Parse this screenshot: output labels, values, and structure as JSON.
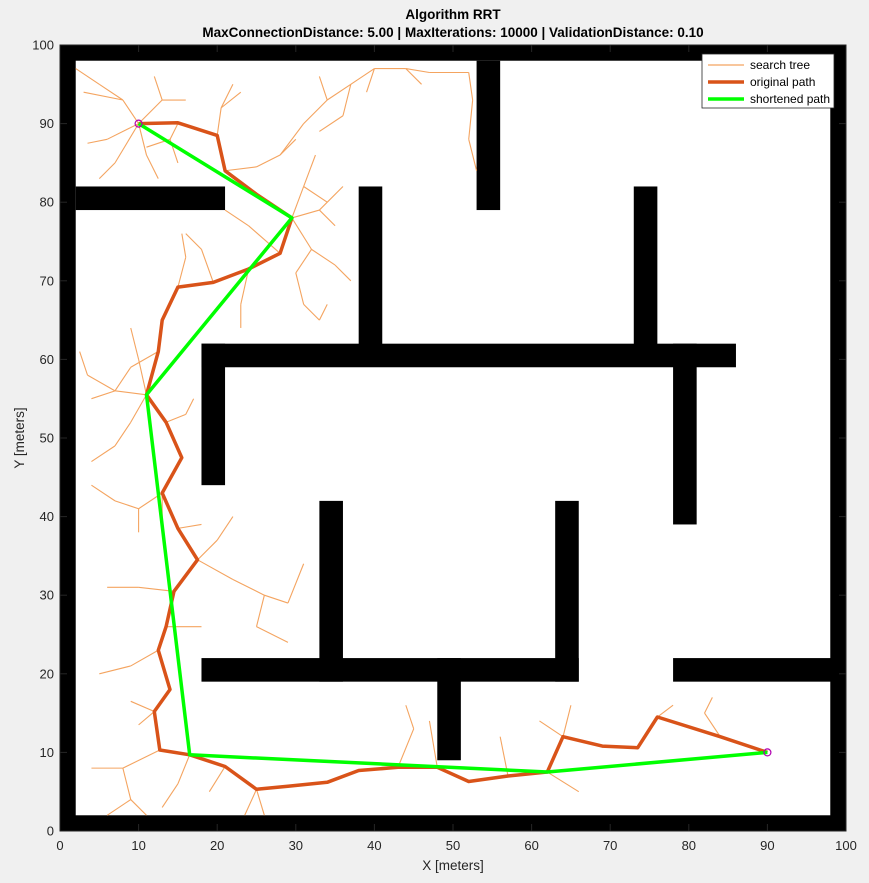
{
  "chart_data": {
    "type": "line",
    "title": "Algorithm RRT",
    "subtitle": "MaxConnectionDistance: 5.00 | MaxIterations: 10000 | ValidationDistance: 0.10",
    "xlabel": "X [meters]",
    "ylabel": "Y [meters]",
    "xlim": [
      0,
      100
    ],
    "ylim": [
      0,
      100
    ],
    "xticks": [
      "0",
      "10",
      "20",
      "30",
      "40",
      "50",
      "60",
      "70",
      "80",
      "90",
      "100"
    ],
    "yticks": [
      "0",
      "10",
      "20",
      "30",
      "40",
      "50",
      "60",
      "70",
      "80",
      "90",
      "100"
    ],
    "grid": false,
    "legend_position": "top-right",
    "legend": [
      {
        "label": "search tree",
        "color": "#f4a460"
      },
      {
        "label": "original path",
        "color": "#d95319"
      },
      {
        "label": "shortened path",
        "color": "#00ff00"
      }
    ],
    "colors": {
      "obstacle": "#000000",
      "tree": "#f4a460",
      "original": "#d95319",
      "shortened": "#00ff00",
      "endpoint": "#b000b0"
    },
    "obstacles": [
      [
        0,
        0,
        100,
        2
      ],
      [
        0,
        98,
        100,
        100
      ],
      [
        0,
        0,
        2,
        100
      ],
      [
        98,
        0,
        100,
        100
      ],
      [
        2,
        79,
        21,
        82
      ],
      [
        53,
        79,
        56,
        98
      ],
      [
        38,
        60,
        41,
        82
      ],
      [
        73,
        60,
        76,
        82
      ],
      [
        18,
        59,
        86,
        62
      ],
      [
        18,
        44,
        21,
        62
      ],
      [
        78,
        39,
        81,
        62
      ],
      [
        33,
        19,
        36,
        42
      ],
      [
        63,
        19,
        66,
        42
      ],
      [
        18,
        19,
        66,
        22
      ],
      [
        48,
        9,
        51,
        22
      ],
      [
        78,
        19,
        100,
        22
      ]
    ],
    "start": [
      10,
      90
    ],
    "goal": [
      90,
      10
    ],
    "original_path": [
      [
        10,
        90
      ],
      [
        15,
        90.1
      ],
      [
        20,
        88.5
      ],
      [
        21,
        84
      ],
      [
        25,
        81
      ],
      [
        29.5,
        78
      ],
      [
        28,
        73.5
      ],
      [
        24,
        71.5
      ],
      [
        19.5,
        69.8
      ],
      [
        15,
        69.2
      ],
      [
        13,
        65
      ],
      [
        12.5,
        61
      ],
      [
        11,
        55.5
      ],
      [
        13.5,
        52
      ],
      [
        15.5,
        47.5
      ],
      [
        13,
        43
      ],
      [
        15,
        38.5
      ],
      [
        17.5,
        34.5
      ],
      [
        14.5,
        30.5
      ],
      [
        13.5,
        26
      ],
      [
        12.5,
        23
      ],
      [
        14,
        18
      ],
      [
        12,
        15.2
      ],
      [
        12.7,
        10.3
      ],
      [
        16.5,
        9.7
      ],
      [
        21,
        8.2
      ],
      [
        25,
        5.3
      ],
      [
        29,
        5.7
      ],
      [
        34,
        6.2
      ],
      [
        38,
        7.7
      ],
      [
        43,
        8.1
      ],
      [
        48,
        8.1
      ],
      [
        52,
        6.3
      ],
      [
        57,
        7
      ],
      [
        62,
        7.5
      ],
      [
        64,
        12
      ],
      [
        69,
        10.8
      ],
      [
        73.5,
        10.6
      ],
      [
        76,
        14.5
      ],
      [
        84,
        12
      ],
      [
        90,
        10
      ]
    ],
    "shortened_path": [
      [
        10,
        90
      ],
      [
        29.5,
        78
      ],
      [
        11,
        55.5
      ],
      [
        16.5,
        9.7
      ],
      [
        62,
        7.5
      ],
      [
        90,
        10
      ]
    ],
    "search_tree": [
      [
        [
          10,
          90
        ],
        [
          6,
          88
        ]
      ],
      [
        [
          6,
          88
        ],
        [
          3.5,
          87.5
        ]
      ],
      [
        [
          10,
          90
        ],
        [
          7,
          85
        ]
      ],
      [
        [
          7,
          85
        ],
        [
          5,
          83
        ]
      ],
      [
        [
          10,
          90
        ],
        [
          11,
          86
        ]
      ],
      [
        [
          11,
          86
        ],
        [
          12.5,
          83
        ]
      ],
      [
        [
          10,
          90
        ],
        [
          8,
          93
        ]
      ],
      [
        [
          8,
          93
        ],
        [
          5,
          95
        ]
      ],
      [
        [
          8,
          93
        ],
        [
          3,
          94
        ]
      ],
      [
        [
          5,
          95
        ],
        [
          2,
          97
        ]
      ],
      [
        [
          10,
          90
        ],
        [
          13,
          93
        ]
      ],
      [
        [
          13,
          93
        ],
        [
          16,
          93
        ]
      ],
      [
        [
          13,
          93
        ],
        [
          12,
          96
        ]
      ],
      [
        [
          15,
          90
        ],
        [
          14,
          88
        ]
      ],
      [
        [
          14,
          88
        ],
        [
          11,
          87
        ]
      ],
      [
        [
          14,
          88
        ],
        [
          15,
          85
        ]
      ],
      [
        [
          20,
          88.5
        ],
        [
          20.5,
          92
        ]
      ],
      [
        [
          20.5,
          92
        ],
        [
          23,
          94
        ]
      ],
      [
        [
          20.5,
          92
        ],
        [
          22,
          95
        ]
      ],
      [
        [
          21,
          84
        ],
        [
          25,
          84.5
        ]
      ],
      [
        [
          25,
          84.5
        ],
        [
          28,
          86
        ]
      ],
      [
        [
          28,
          86
        ],
        [
          31,
          90
        ]
      ],
      [
        [
          28,
          86
        ],
        [
          30,
          88
        ]
      ],
      [
        [
          31,
          90
        ],
        [
          34,
          93
        ]
      ],
      [
        [
          34,
          93
        ],
        [
          37,
          95
        ]
      ],
      [
        [
          34,
          93
        ],
        [
          33,
          96
        ]
      ],
      [
        [
          37,
          95
        ],
        [
          40,
          97
        ]
      ],
      [
        [
          40,
          97
        ],
        [
          44,
          97
        ]
      ],
      [
        [
          44,
          97
        ],
        [
          47,
          96.5
        ]
      ],
      [
        [
          44,
          97
        ],
        [
          46,
          95
        ]
      ],
      [
        [
          40,
          97
        ],
        [
          39,
          94
        ]
      ],
      [
        [
          37,
          95
        ],
        [
          36,
          91
        ]
      ],
      [
        [
          36,
          91
        ],
        [
          33,
          89
        ]
      ],
      [
        [
          47,
          96.5
        ],
        [
          52,
          96.5
        ]
      ],
      [
        [
          52,
          96.5
        ],
        [
          52.5,
          93
        ]
      ],
      [
        [
          52.5,
          93
        ],
        [
          52,
          88
        ]
      ],
      [
        [
          52,
          88
        ],
        [
          53,
          84
        ]
      ],
      [
        [
          29.5,
          78
        ],
        [
          31,
          82
        ]
      ],
      [
        [
          31,
          82
        ],
        [
          32.5,
          86
        ]
      ],
      [
        [
          31,
          82
        ],
        [
          34,
          80
        ]
      ],
      [
        [
          29.5,
          78
        ],
        [
          33,
          79
        ]
      ],
      [
        [
          33,
          79
        ],
        [
          36,
          82
        ]
      ],
      [
        [
          33,
          79
        ],
        [
          35,
          77
        ]
      ],
      [
        [
          29.5,
          78
        ],
        [
          32,
          74
        ]
      ],
      [
        [
          32,
          74
        ],
        [
          35,
          72
        ]
      ],
      [
        [
          35,
          72
        ],
        [
          37,
          70
        ]
      ],
      [
        [
          32,
          74
        ],
        [
          30,
          71
        ]
      ],
      [
        [
          30,
          71
        ],
        [
          31,
          67
        ]
      ],
      [
        [
          31,
          67
        ],
        [
          33,
          65
        ]
      ],
      [
        [
          33,
          65
        ],
        [
          34,
          67
        ]
      ],
      [
        [
          28,
          73.5
        ],
        [
          24,
          77
        ]
      ],
      [
        [
          24,
          77
        ],
        [
          21,
          79
        ]
      ],
      [
        [
          24,
          71.5
        ],
        [
          23,
          67
        ]
      ],
      [
        [
          23,
          67
        ],
        [
          23,
          64
        ]
      ],
      [
        [
          19.5,
          69.8
        ],
        [
          18,
          74
        ]
      ],
      [
        [
          18,
          74
        ],
        [
          16,
          76
        ]
      ],
      [
        [
          15,
          69.2
        ],
        [
          16,
          73
        ]
      ],
      [
        [
          16,
          73
        ],
        [
          15.5,
          76
        ]
      ],
      [
        [
          12.5,
          61
        ],
        [
          9,
          59
        ]
      ],
      [
        [
          9,
          59
        ],
        [
          7,
          56
        ]
      ],
      [
        [
          11,
          55.5
        ],
        [
          7,
          56
        ]
      ],
      [
        [
          7,
          56
        ],
        [
          4,
          55
        ]
      ],
      [
        [
          7,
          56
        ],
        [
          3.5,
          58
        ]
      ],
      [
        [
          3.5,
          58
        ],
        [
          2.5,
          61
        ]
      ],
      [
        [
          11,
          55.5
        ],
        [
          9,
          52
        ]
      ],
      [
        [
          9,
          52
        ],
        [
          7,
          49
        ]
      ],
      [
        [
          7,
          49
        ],
        [
          4,
          47
        ]
      ],
      [
        [
          11,
          55.5
        ],
        [
          10,
          60
        ]
      ],
      [
        [
          10,
          60
        ],
        [
          9,
          64
        ]
      ],
      [
        [
          13.5,
          52
        ],
        [
          16,
          53
        ]
      ],
      [
        [
          16,
          53
        ],
        [
          17,
          55
        ]
      ],
      [
        [
          13,
          43
        ],
        [
          10,
          41
        ]
      ],
      [
        [
          10,
          41
        ],
        [
          7,
          42
        ]
      ],
      [
        [
          7,
          42
        ],
        [
          4,
          44
        ]
      ],
      [
        [
          10,
          41
        ],
        [
          10,
          38
        ]
      ],
      [
        [
          13,
          43
        ],
        [
          13,
          39
        ]
      ],
      [
        [
          15,
          38.5
        ],
        [
          18,
          39
        ]
      ],
      [
        [
          17.5,
          34.5
        ],
        [
          20,
          37
        ]
      ],
      [
        [
          20,
          37
        ],
        [
          22,
          40
        ]
      ],
      [
        [
          17.5,
          34.5
        ],
        [
          22,
          32
        ]
      ],
      [
        [
          22,
          32
        ],
        [
          26,
          30
        ]
      ],
      [
        [
          26,
          30
        ],
        [
          29,
          29
        ]
      ],
      [
        [
          29,
          29
        ],
        [
          31,
          34
        ]
      ],
      [
        [
          26,
          30
        ],
        [
          25,
          26
        ]
      ],
      [
        [
          25,
          26
        ],
        [
          29,
          24
        ]
      ],
      [
        [
          14.5,
          30.5
        ],
        [
          10,
          31
        ]
      ],
      [
        [
          10,
          31
        ],
        [
          6,
          31
        ]
      ],
      [
        [
          13.5,
          26
        ],
        [
          18,
          26
        ]
      ],
      [
        [
          12.5,
          23
        ],
        [
          9,
          21
        ]
      ],
      [
        [
          9,
          21
        ],
        [
          5,
          20
        ]
      ],
      [
        [
          12,
          15.2
        ],
        [
          9,
          16.5
        ]
      ],
      [
        [
          12,
          15.2
        ],
        [
          10,
          13.5
        ]
      ],
      [
        [
          16.5,
          9.7
        ],
        [
          15,
          6
        ]
      ],
      [
        [
          15,
          6
        ],
        [
          13,
          3
        ]
      ],
      [
        [
          21,
          8.2
        ],
        [
          19,
          5
        ]
      ],
      [
        [
          25,
          5.3
        ],
        [
          26,
          2
        ]
      ],
      [
        [
          25,
          5.3
        ],
        [
          23.5,
          2
        ]
      ],
      [
        [
          12.7,
          10.3
        ],
        [
          8,
          8
        ]
      ],
      [
        [
          8,
          8
        ],
        [
          4,
          8
        ]
      ],
      [
        [
          8,
          8
        ],
        [
          9,
          4
        ]
      ],
      [
        [
          9,
          4
        ],
        [
          6,
          2
        ]
      ],
      [
        [
          9,
          4
        ],
        [
          11,
          2
        ]
      ],
      [
        [
          43,
          8.1
        ],
        [
          45,
          13
        ]
      ],
      [
        [
          45,
          13
        ],
        [
          44,
          16
        ]
      ],
      [
        [
          48,
          8.1
        ],
        [
          47,
          14
        ]
      ],
      [
        [
          57,
          7
        ],
        [
          56,
          12
        ]
      ],
      [
        [
          64,
          12
        ],
        [
          65,
          16
        ]
      ],
      [
        [
          64,
          12
        ],
        [
          61,
          14
        ]
      ],
      [
        [
          62,
          7.5
        ],
        [
          66,
          5
        ]
      ],
      [
        [
          76,
          14.5
        ],
        [
          78,
          16
        ]
      ],
      [
        [
          84,
          12
        ],
        [
          82,
          15
        ]
      ],
      [
        [
          82,
          15
        ],
        [
          83,
          17
        ]
      ]
    ]
  }
}
